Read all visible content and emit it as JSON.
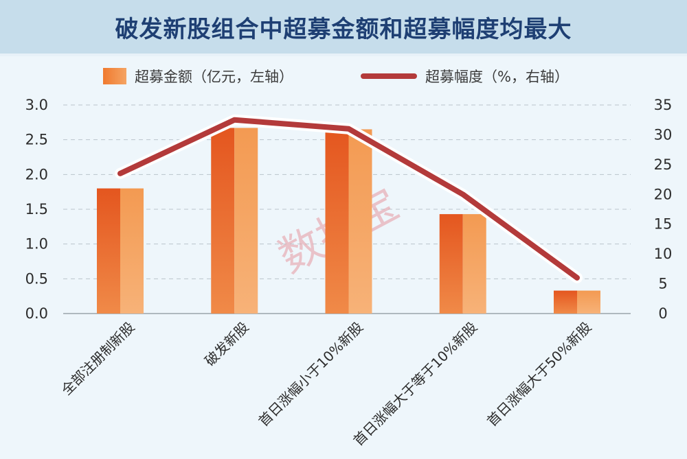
{
  "title": "破发新股组合中超募金额和超募幅度均最大",
  "legend": {
    "bar_label": "超募金额（亿元，左轴）",
    "line_label": "超募幅度（%，右轴）"
  },
  "watermark": "数据宝",
  "colors": {
    "bar_dark": "#e8622a",
    "bar_light": "#f5a463",
    "line": "#b33a3a",
    "title": "#1e3f73"
  },
  "chart_data": {
    "type": "bar",
    "categories": [
      "全部注册制新股",
      "破发新股",
      "首日涨幅小于10%新股",
      "首日涨幅大于等于10%新股",
      "首日涨幅大于50%新股"
    ],
    "series": [
      {
        "name": "超募金额（亿元，左轴）",
        "type": "bar",
        "axis": "left",
        "values": [
          1.8,
          2.67,
          2.65,
          1.43,
          0.33
        ]
      },
      {
        "name": "超募幅度（%，右轴）",
        "type": "line",
        "axis": "right",
        "values": [
          23.5,
          32.5,
          31.0,
          20.0,
          6.0
        ]
      }
    ],
    "y_left": {
      "lim": [
        0,
        3.0
      ],
      "ticks": [
        "0.0",
        "0.5",
        "1.0",
        "1.5",
        "2.0",
        "2.5",
        "3.0"
      ]
    },
    "y_right": {
      "lim": [
        0,
        35
      ],
      "ticks": [
        "0",
        "5",
        "10",
        "15",
        "20",
        "25",
        "30",
        "35"
      ]
    },
    "grid": "horizontal dashed",
    "legend_position": "top"
  }
}
